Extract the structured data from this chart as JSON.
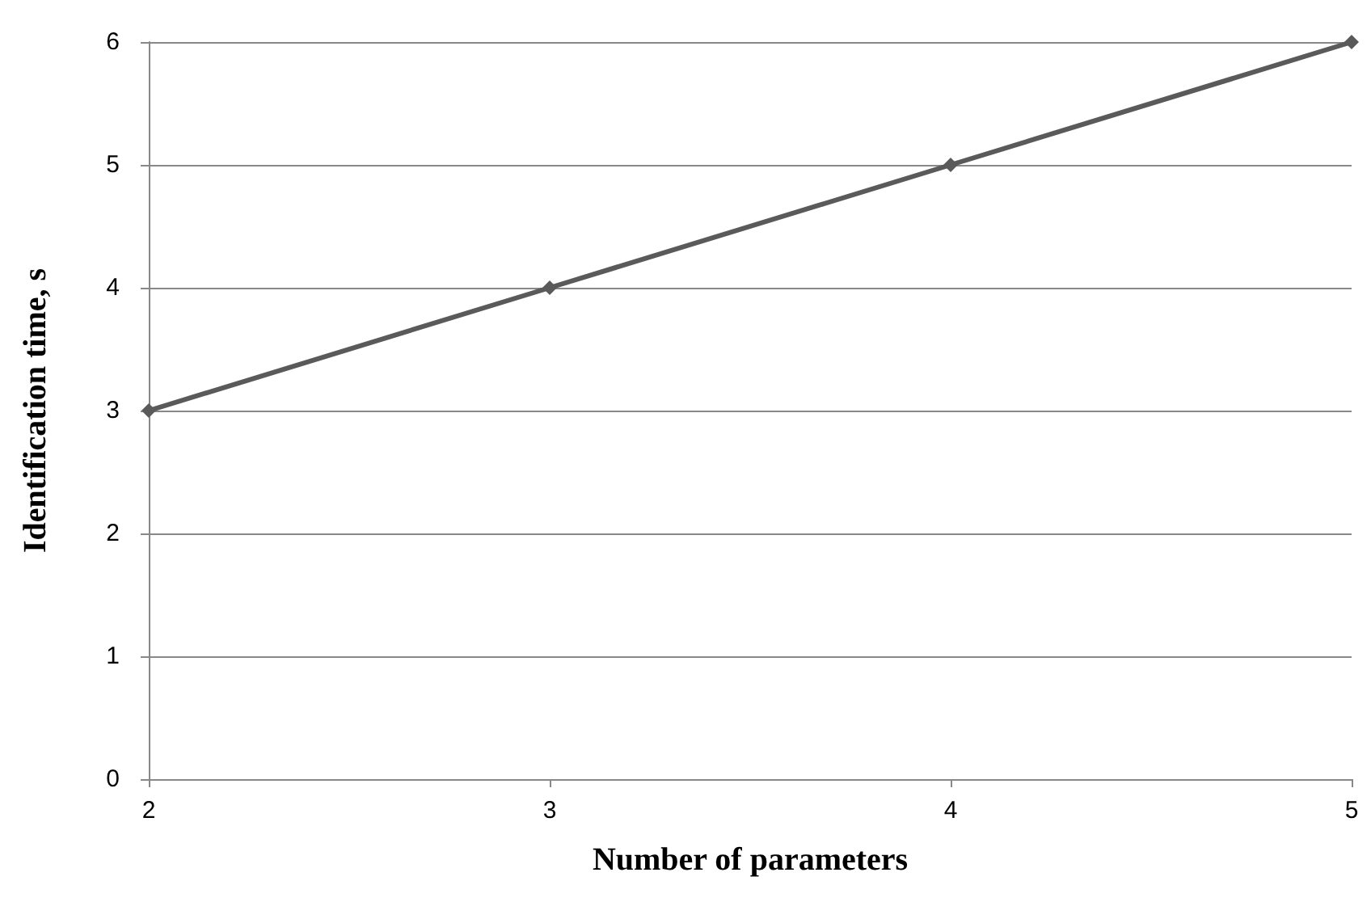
{
  "chart_data": {
    "type": "line",
    "xlabel": "Number of parameters",
    "ylabel": "Identification time, s",
    "categories": [
      "2",
      "3",
      "4",
      "5"
    ],
    "series": [
      {
        "color": "#5a5a5a",
        "values": [
          3,
          4,
          5,
          6
        ]
      }
    ],
    "ylim": [
      0,
      6
    ],
    "yticks": [
      0,
      1,
      2,
      3,
      4,
      5,
      6
    ],
    "grid": "y",
    "marker": "diamond",
    "line_style": "solid"
  }
}
